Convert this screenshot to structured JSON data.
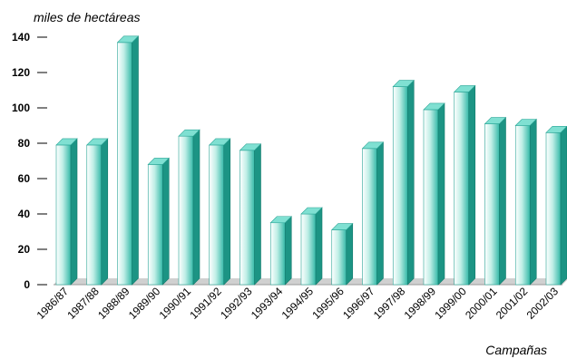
{
  "chart_data": {
    "type": "bar",
    "ylabel": "miles de hectáreas",
    "xlabel": "Campañas",
    "ylim": [
      0,
      140
    ],
    "yticks": [
      0,
      20,
      40,
      60,
      80,
      100,
      120,
      140
    ],
    "grid": false,
    "categories": [
      "1986/87",
      "1987/88",
      "1988/89",
      "1989/90",
      "1990/91",
      "1991/92",
      "1992/93",
      "1993/94",
      "1994/95",
      "1995/96",
      "1996/97",
      "1997/98",
      "1998/99",
      "1999/00",
      "2000/01",
      "2001/02",
      "2002/03"
    ],
    "values": [
      79,
      79,
      137,
      68,
      84,
      79,
      76,
      35,
      40,
      31,
      77,
      112,
      99,
      109,
      91,
      90,
      86
    ],
    "colors": {
      "bar_front": "#3cc0b0",
      "bar_front_light": "#d9f4ef",
      "bar_side": "#1c9484",
      "bar_top": "#7fe0d2",
      "floor": "#c8c8c8"
    }
  }
}
